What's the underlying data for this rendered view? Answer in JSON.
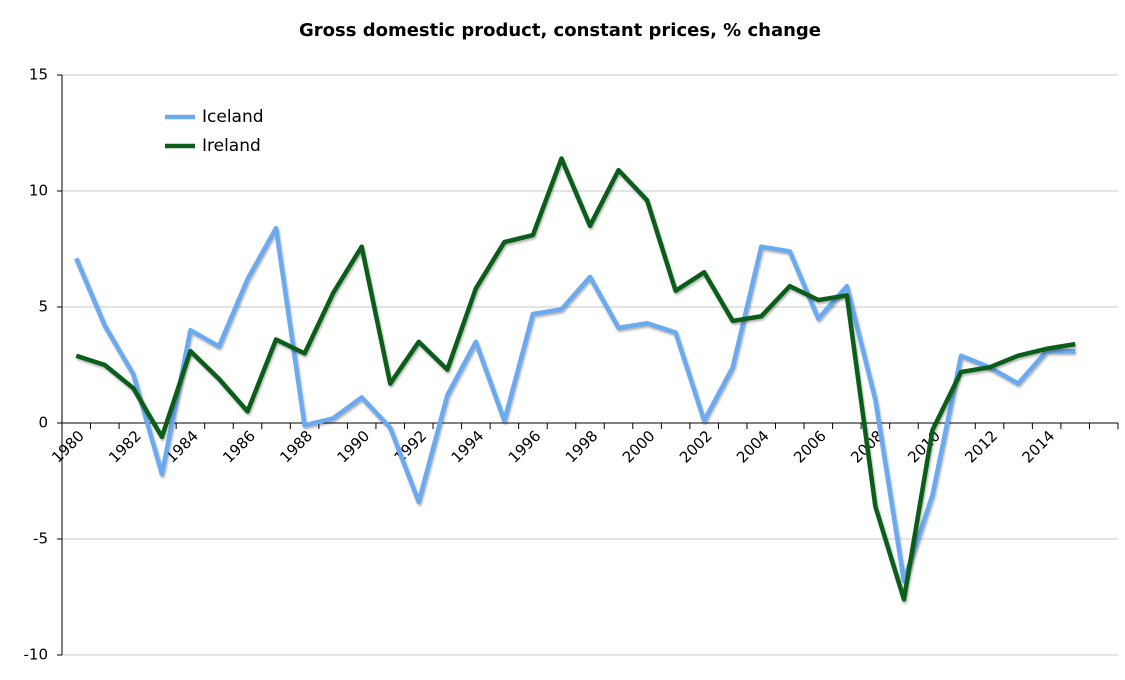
{
  "chart_data": {
    "type": "line",
    "title": "Gross domestic product, constant prices, % change",
    "categories": [
      "1980",
      null,
      "1982",
      null,
      "1984",
      null,
      "1986",
      null,
      "1988",
      null,
      "1990",
      null,
      "1992",
      null,
      "1994",
      null,
      "1996",
      null,
      "1998",
      null,
      "2000",
      null,
      "2002",
      null,
      "2004",
      null,
      "2006",
      null,
      "2008",
      null,
      "2010",
      null,
      "2012",
      null,
      "2014",
      null
    ],
    "series": [
      {
        "name": "Iceland",
        "color": "#6aaaf0",
        "values": [
          7.1,
          4.2,
          2.1,
          -2.2,
          4.0,
          3.3,
          6.2,
          8.4,
          -0.1,
          0.2,
          1.1,
          -0.2,
          -3.4,
          1.2,
          3.5,
          0.1,
          4.7,
          4.9,
          6.3,
          4.1,
          4.3,
          3.9,
          0.1,
          2.4,
          7.6,
          7.4,
          4.5,
          5.9,
          1.0,
          -6.8,
          -3.1,
          2.9,
          2.4,
          1.7,
          3.1,
          3.1
        ]
      },
      {
        "name": "Ireland",
        "color": "#0b5e1a",
        "values": [
          2.9,
          2.5,
          1.5,
          -0.6,
          3.1,
          1.9,
          0.5,
          3.6,
          3.0,
          5.6,
          7.6,
          1.7,
          3.5,
          2.3,
          5.8,
          7.8,
          8.1,
          11.4,
          8.5,
          10.9,
          9.6,
          5.7,
          6.5,
          4.4,
          4.6,
          5.9,
          5.3,
          5.5,
          -3.6,
          -7.6,
          -0.3,
          2.2,
          2.4,
          2.9,
          3.2,
          3.4
        ]
      }
    ],
    "ylim": [
      -10,
      15
    ],
    "yticks": [
      -10,
      -5,
      0,
      5,
      10,
      15
    ],
    "grid": true,
    "legend": "upper left"
  }
}
